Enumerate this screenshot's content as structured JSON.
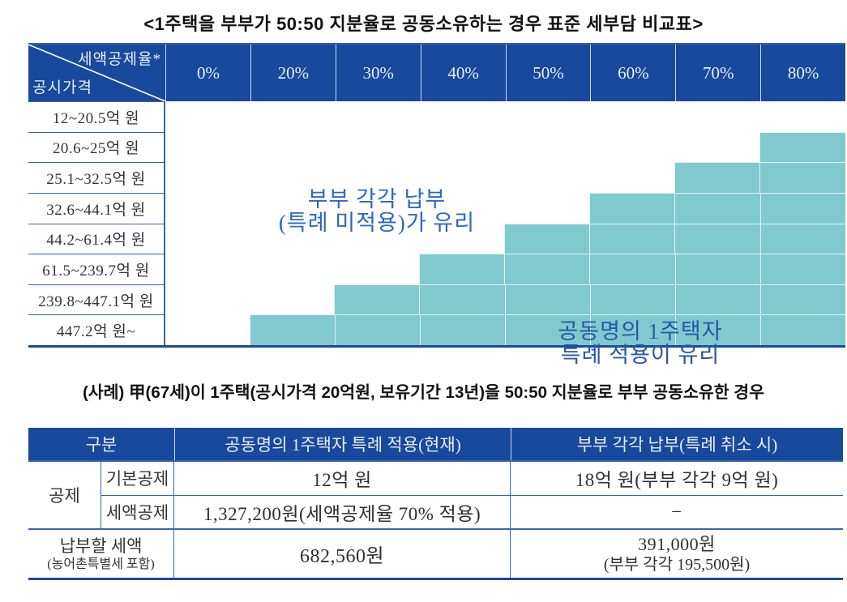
{
  "title": "<1주택을 부부가 50:50 지분율로 공동소유하는 경우 표준 세부담 비교표>",
  "matrix": {
    "corner_top_label": "세액공제율*",
    "corner_bottom_label": "공시가격",
    "columns": [
      "0%",
      "20%",
      "30%",
      "40%",
      "50%",
      "60%",
      "70%",
      "80%"
    ],
    "rows": [
      {
        "label": "12~20.5억 원",
        "joint_advantage_from_column": null
      },
      {
        "label": "20.6~25억 원",
        "joint_advantage_from_column": 7
      },
      {
        "label": "25.1~32.5억 원",
        "joint_advantage_from_column": 6
      },
      {
        "label": "32.6~44.1억 원",
        "joint_advantage_from_column": 5
      },
      {
        "label": "44.2~61.4억 원",
        "joint_advantage_from_column": 4
      },
      {
        "label": "61.5~239.7억 원",
        "joint_advantage_from_column": 3
      },
      {
        "label": "239.8~447.1억 원",
        "joint_advantage_from_column": 2
      },
      {
        "label": "447.2억 원~",
        "joint_advantage_from_column": 1
      }
    ],
    "white_zone": {
      "line1": "부부 각각 납부",
      "line2": "(특례 미적용)가 유리"
    },
    "teal_zone": {
      "line1": "공동명의 1주택자",
      "line2": "특례 적용이 유리"
    },
    "colors": {
      "header_navy": "#17499C",
      "teal_fill": "#80C9CF",
      "border_blue": "#3565AF",
      "bottom_border_navy": "#1C4996",
      "white_zone_text_blue": "#2E68BE",
      "teal_zone_text_blue": "#2857A8"
    }
  },
  "case_line": "(사례) 甲(67세)이 1주택(공시가격 20억원, 보유기간 13년)을 50:50 지분율로 부부 공동소유한 경우",
  "case_table": {
    "col_headers": [
      "구분",
      "공동명의 1주택자 특례 적용(현재)",
      "부부 각각 납부(특례 취소 시)"
    ],
    "deduction_group_label": "공제",
    "deduction_rows": [
      {
        "label": "기본공제",
        "current": "12억 원",
        "separate": "18억 원(부부 각각 9억 원)"
      },
      {
        "label": "세액공제",
        "current": "1,327,200원(세액공제율 70% 적용)",
        "separate": "−"
      }
    ],
    "total_row": {
      "label_line1": "납부할 세액",
      "label_line2": "(농어촌특별세 포함)",
      "current": "682,560원",
      "separate_line1": "391,000원",
      "separate_line2": "(부부 각각 195,500원)"
    }
  }
}
